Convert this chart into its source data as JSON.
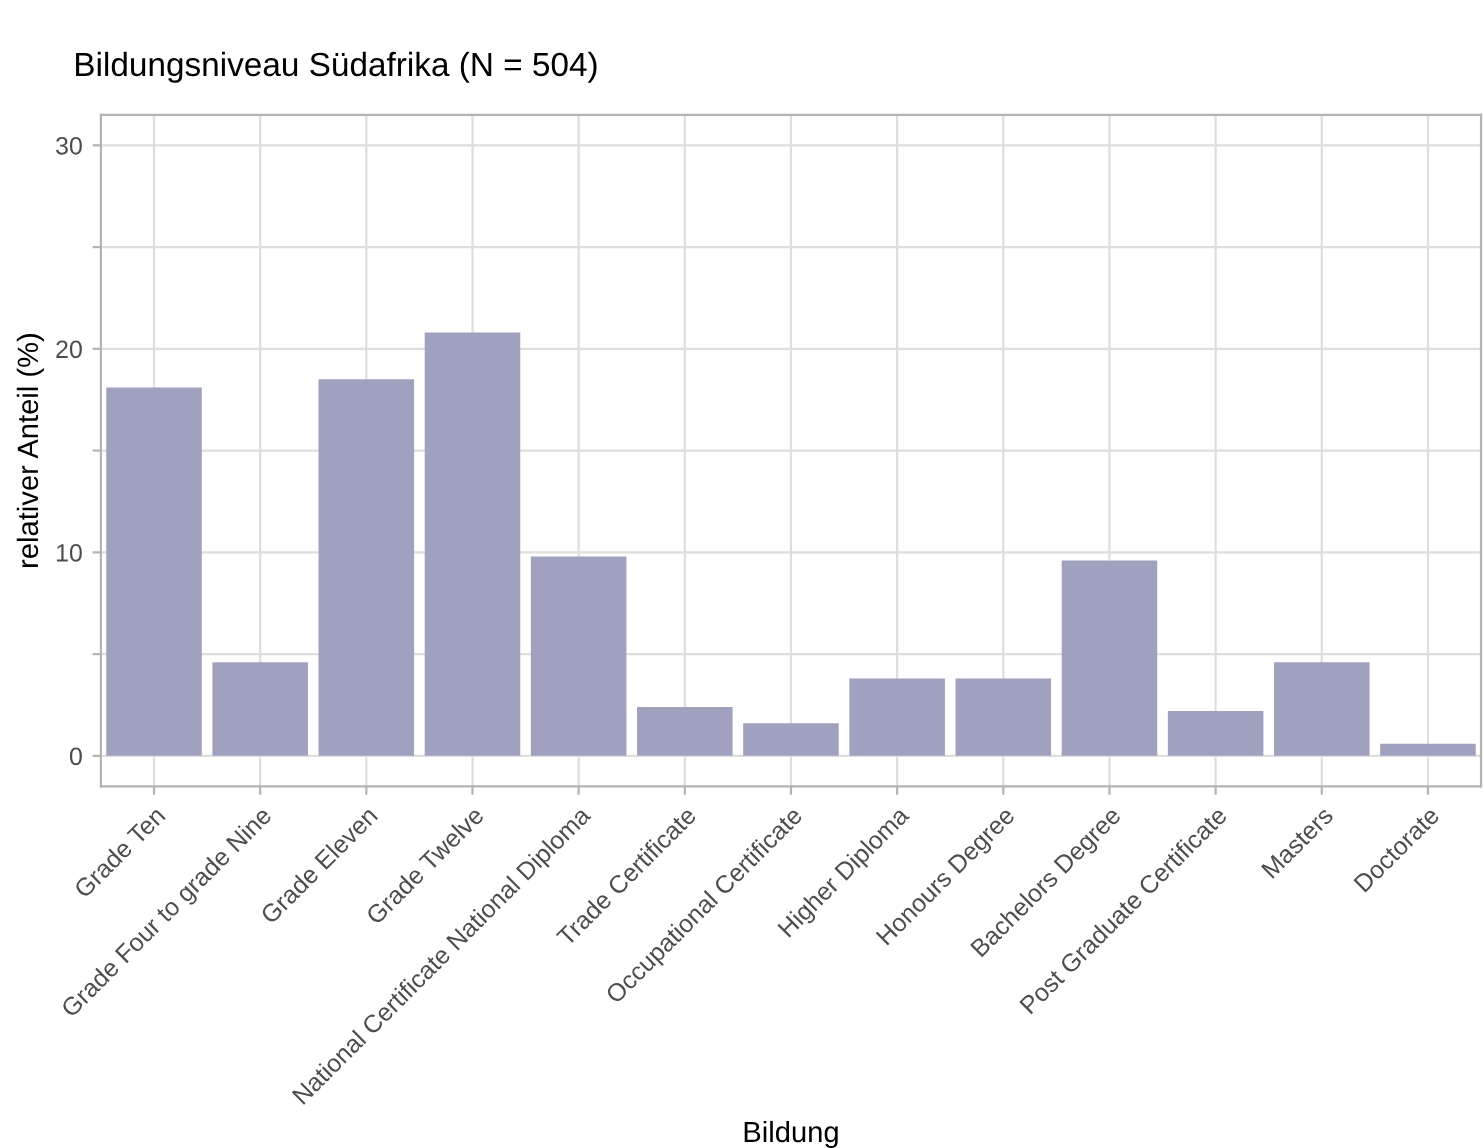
{
  "chart_data": {
    "type": "bar",
    "title": "Bildungsniveau Südafrika (N = 504)",
    "xlabel": "Bildung",
    "ylabel": "relativer Anteil (%)",
    "categories": [
      "Grade Ten",
      "Grade Four to grade Nine",
      "Grade Eleven",
      "Grade Twelve",
      "National Certificate National Diploma",
      "Trade Certificate",
      "Occupational Certificate",
      "Higher Diploma",
      "Honours Degree",
      "Bachelors Degree",
      "Post Graduate Certificate",
      "Masters",
      "Doctorate"
    ],
    "values": [
      18.1,
      4.6,
      18.5,
      20.8,
      9.8,
      2.4,
      1.6,
      3.8,
      3.8,
      9.6,
      2.2,
      4.6,
      0.6
    ],
    "color": "#a0a0bf",
    "ylim": [
      -1.5,
      31.5
    ],
    "yticks": [
      0,
      {
        "value": 5,
        "label": null
      },
      10,
      {
        "value": 15,
        "label": null
      },
      20,
      {
        "value": 25,
        "label": null
      },
      30
    ],
    "grid": true
  }
}
